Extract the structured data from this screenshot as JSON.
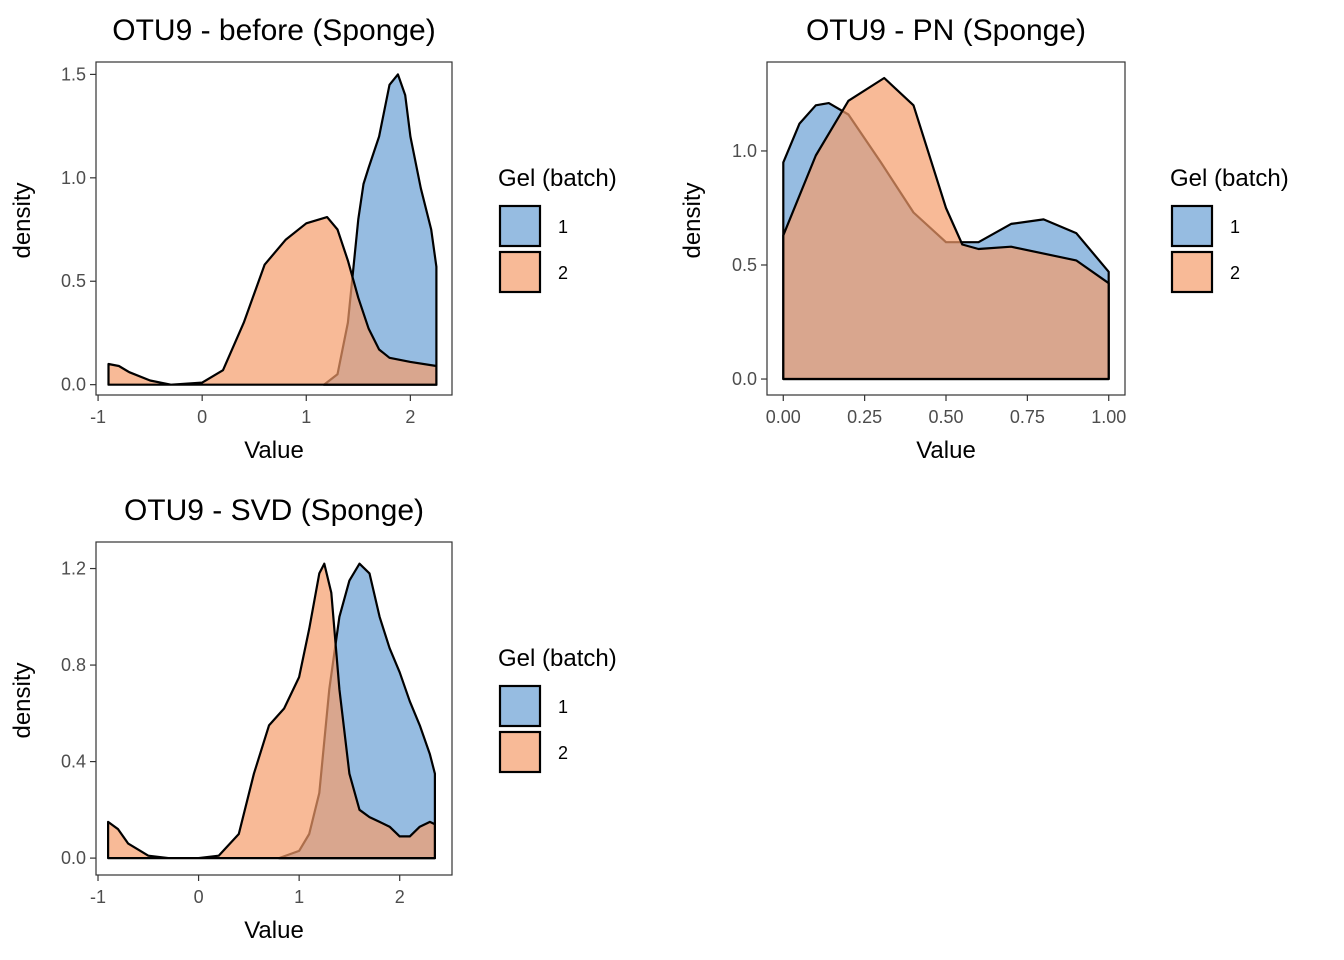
{
  "colors": {
    "batch1": "#6a9fd4",
    "batch2": "#f59d6b",
    "outline": "#000000",
    "tick_text": "#4d4d4d"
  },
  "chart_data": [
    {
      "type": "area",
      "title": "OTU9 - before (Sponge)",
      "xlabel": "Value",
      "ylabel": "density",
      "xlim": [
        -1.02,
        2.4
      ],
      "ylim": [
        -0.05,
        1.56
      ],
      "xticks": [
        -1,
        0,
        1,
        2
      ],
      "xtick_labels": [
        "-1",
        "0",
        "1",
        "2"
      ],
      "yticks": [
        0,
        0.5,
        1,
        1.5
      ],
      "ytick_labels": [
        "0.0",
        "0.5",
        "1.0",
        "1.5"
      ],
      "legend": {
        "title": "Gel (batch)",
        "position": "right",
        "entries": [
          "1",
          "2"
        ]
      },
      "series": [
        {
          "name": "1",
          "color": "#6a9fd4",
          "x": [
            1.17,
            1.3,
            1.4,
            1.5,
            1.55,
            1.6,
            1.7,
            1.8,
            1.88,
            1.95,
            2.0,
            2.1,
            2.2,
            2.25
          ],
          "y": [
            0.0,
            0.05,
            0.3,
            0.8,
            0.97,
            1.05,
            1.2,
            1.45,
            1.5,
            1.4,
            1.2,
            0.95,
            0.75,
            0.57
          ]
        },
        {
          "name": "2",
          "color": "#f59d6b",
          "x": [
            -0.9,
            -0.8,
            -0.7,
            -0.5,
            -0.3,
            0.0,
            0.2,
            0.4,
            0.6,
            0.8,
            1.0,
            1.2,
            1.3,
            1.4,
            1.5,
            1.6,
            1.7,
            1.8,
            2.0,
            2.25
          ],
          "y": [
            0.1,
            0.09,
            0.06,
            0.02,
            0.0,
            0.01,
            0.07,
            0.3,
            0.58,
            0.7,
            0.78,
            0.81,
            0.75,
            0.6,
            0.42,
            0.27,
            0.17,
            0.13,
            0.11,
            0.09
          ]
        }
      ]
    },
    {
      "type": "area",
      "title": "OTU9 - PN (Sponge)",
      "xlabel": "Value",
      "ylabel": "density",
      "xlim": [
        -0.05,
        1.05
      ],
      "ylim": [
        -0.07,
        1.39
      ],
      "xticks": [
        0,
        0.25,
        0.5,
        0.75,
        1.0
      ],
      "xtick_labels": [
        "0.00",
        "0.25",
        "0.50",
        "0.75",
        "1.00"
      ],
      "yticks": [
        0,
        0.5,
        1.0
      ],
      "ytick_labels": [
        "0.0",
        "0.5",
        "1.0"
      ],
      "legend": {
        "title": "Gel (batch)",
        "position": "right",
        "entries": [
          "1",
          "2"
        ]
      },
      "series": [
        {
          "name": "1",
          "color": "#6a9fd4",
          "x": [
            0.0,
            0.05,
            0.1,
            0.14,
            0.2,
            0.3,
            0.4,
            0.5,
            0.6,
            0.7,
            0.8,
            0.9,
            1.0
          ],
          "y": [
            0.95,
            1.12,
            1.2,
            1.21,
            1.16,
            0.95,
            0.73,
            0.6,
            0.6,
            0.68,
            0.7,
            0.64,
            0.47
          ]
        },
        {
          "name": "2",
          "color": "#f59d6b",
          "x": [
            0.0,
            0.1,
            0.2,
            0.31,
            0.4,
            0.5,
            0.55,
            0.6,
            0.7,
            0.8,
            0.9,
            1.0
          ],
          "y": [
            0.63,
            0.98,
            1.22,
            1.32,
            1.2,
            0.75,
            0.59,
            0.57,
            0.58,
            0.55,
            0.52,
            0.42
          ]
        }
      ]
    },
    {
      "type": "area",
      "title": "OTU9 - SVD (Sponge)",
      "xlabel": "Value",
      "ylabel": "density",
      "xlim": [
        -1.02,
        2.52
      ],
      "ylim": [
        -0.07,
        1.31
      ],
      "xticks": [
        -1,
        0,
        1,
        2
      ],
      "xtick_labels": [
        "-1",
        "0",
        "1",
        "2"
      ],
      "yticks": [
        0,
        0.4,
        0.8,
        1.2
      ],
      "ytick_labels": [
        "0.0",
        "0.4",
        "0.8",
        "1.2"
      ],
      "legend": {
        "title": "Gel (batch)",
        "position": "right",
        "entries": [
          "1",
          "2"
        ]
      },
      "series": [
        {
          "name": "1",
          "color": "#6a9fd4",
          "x": [
            0.8,
            1.0,
            1.1,
            1.2,
            1.3,
            1.4,
            1.5,
            1.6,
            1.7,
            1.8,
            1.9,
            2.0,
            2.1,
            2.2,
            2.3,
            2.35
          ],
          "y": [
            0.0,
            0.03,
            0.1,
            0.27,
            0.7,
            1.0,
            1.15,
            1.22,
            1.18,
            1.0,
            0.87,
            0.77,
            0.65,
            0.55,
            0.43,
            0.35
          ]
        },
        {
          "name": "2",
          "color": "#f59d6b",
          "x": [
            -0.9,
            -0.8,
            -0.7,
            -0.5,
            -0.3,
            0.0,
            0.2,
            0.4,
            0.55,
            0.7,
            0.85,
            1.0,
            1.1,
            1.2,
            1.25,
            1.32,
            1.4,
            1.5,
            1.6,
            1.7,
            1.8,
            1.9,
            2.0,
            2.1,
            2.2,
            2.3,
            2.35
          ],
          "y": [
            0.15,
            0.12,
            0.06,
            0.01,
            0.0,
            0.0,
            0.01,
            0.1,
            0.35,
            0.55,
            0.62,
            0.75,
            0.95,
            1.18,
            1.22,
            1.1,
            0.7,
            0.35,
            0.2,
            0.17,
            0.15,
            0.13,
            0.09,
            0.09,
            0.13,
            0.15,
            0.14
          ]
        }
      ]
    }
  ]
}
